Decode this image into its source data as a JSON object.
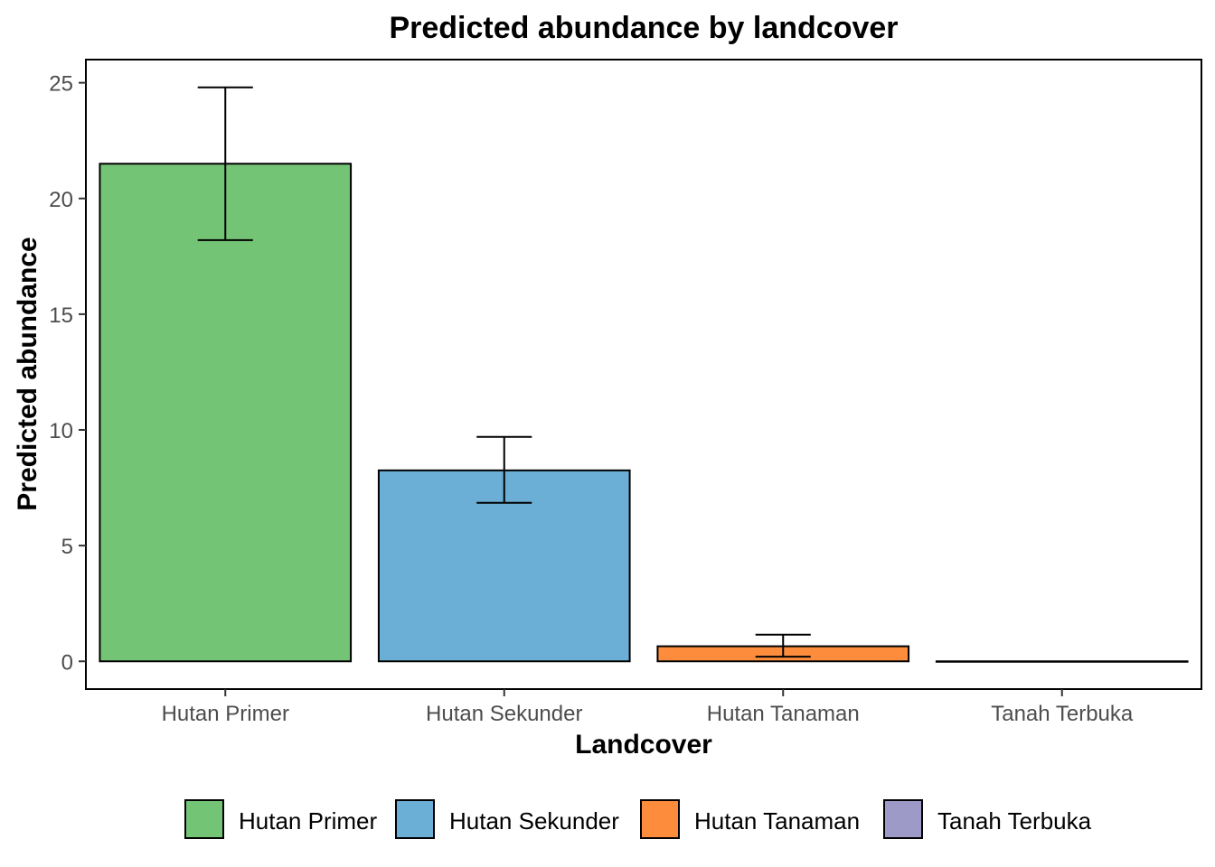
{
  "chart_data": {
    "type": "bar",
    "title": "Predicted abundance by landcover",
    "xlabel": "Landcover",
    "ylabel": "Predicted abundance",
    "categories": [
      "Hutan Primer",
      "Hutan Sekunder",
      "Hutan Tanaman",
      "Tanah Terbuka"
    ],
    "values": [
      21.5,
      8.25,
      0.65,
      0.0
    ],
    "error_lower": [
      18.2,
      6.85,
      0.2,
      0.0
    ],
    "error_upper": [
      24.8,
      9.7,
      1.15,
      0.0
    ],
    "colors": [
      "#74c476",
      "#6baed6",
      "#fd8d3c",
      "#9e9ac8"
    ],
    "ylim": [
      -1.2,
      26
    ],
    "yticks": [
      0,
      5,
      10,
      15,
      20,
      25
    ],
    "grid": false,
    "legend": {
      "position": "bottom",
      "entries": [
        "Hutan Primer",
        "Hutan Sekunder",
        "Hutan Tanaman",
        "Tanah Terbuka"
      ]
    }
  }
}
